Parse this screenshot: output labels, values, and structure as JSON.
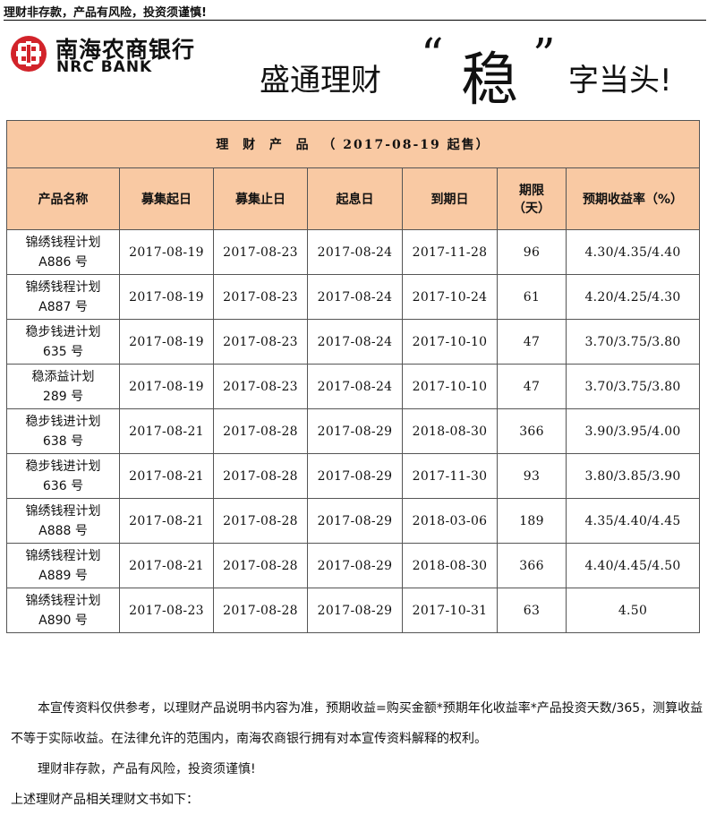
{
  "header": {
    "warning": "理财非存款，产品有风险，投资须谨慎!"
  },
  "logo": {
    "cn": "南海农商银行",
    "en": "NRC BANK"
  },
  "slogan": {
    "part1": "盛通理财",
    "open_quote": "“",
    "emphasis": "稳",
    "close_quote": "”",
    "part2": "字当头!"
  },
  "table": {
    "title": "理  财  产  品  （ 2017-08-19 起售）",
    "columns": [
      "产品名称",
      "募集起日",
      "募集止日",
      "起息日",
      "到期日",
      "期限（天）",
      "预期收益率（%）"
    ],
    "rows": [
      {
        "name_1": "锦绣钱程计划",
        "name_2": "A886 号",
        "start": "2017-08-19",
        "end": "2017-08-23",
        "value_date": "2017-08-24",
        "maturity": "2017-11-28",
        "days": "96",
        "yield": "4.30/4.35/4.40"
      },
      {
        "name_1": "锦绣钱程计划",
        "name_2": "A887 号",
        "start": "2017-08-19",
        "end": "2017-08-23",
        "value_date": "2017-08-24",
        "maturity": "2017-10-24",
        "days": "61",
        "yield": "4.20/4.25/4.30"
      },
      {
        "name_1": "稳步钱进计划",
        "name_2": "635 号",
        "start": "2017-08-19",
        "end": "2017-08-23",
        "value_date": "2017-08-24",
        "maturity": "2017-10-10",
        "days": "47",
        "yield": "3.70/3.75/3.80"
      },
      {
        "name_1": "稳添益计划",
        "name_2": "289 号",
        "start": "2017-08-19",
        "end": "2017-08-23",
        "value_date": "2017-08-24",
        "maturity": "2017-10-10",
        "days": "47",
        "yield": "3.70/3.75/3.80"
      },
      {
        "name_1": "稳步钱进计划",
        "name_2": "638 号",
        "start": "2017-08-21",
        "end": "2017-08-28",
        "value_date": "2017-08-29",
        "maturity": "2018-08-30",
        "days": "366",
        "yield": "3.90/3.95/4.00"
      },
      {
        "name_1": "稳步钱进计划",
        "name_2": "636 号",
        "start": "2017-08-21",
        "end": "2017-08-28",
        "value_date": "2017-08-29",
        "maturity": "2017-11-30",
        "days": "93",
        "yield": "3.80/3.85/3.90"
      },
      {
        "name_1": "锦绣钱程计划",
        "name_2": "A888 号",
        "start": "2017-08-21",
        "end": "2017-08-28",
        "value_date": "2017-08-29",
        "maturity": "2018-03-06",
        "days": "189",
        "yield": "4.35/4.40/4.45"
      },
      {
        "name_1": "锦绣钱程计划",
        "name_2": "A889 号",
        "start": "2017-08-21",
        "end": "2017-08-28",
        "value_date": "2017-08-29",
        "maturity": "2018-08-30",
        "days": "366",
        "yield": "4.40/4.45/4.50"
      },
      {
        "name_1": "锦绣钱程计划",
        "name_2": "A890 号",
        "start": "2017-08-23",
        "end": "2017-08-28",
        "value_date": "2017-08-29",
        "maturity": "2017-10-31",
        "days": "63",
        "yield": "4.50"
      }
    ]
  },
  "footer": {
    "disclaimer": "本宣传资料仅供参考，以理财产品说明书内容为准，预期收益=购买金额*预期年化收益率*产品投资天数/365，测算收益不等于实际收益。在法律允许的范围内，南海农商银行拥有对本宣传资料解释的权利。",
    "warning": "理财非存款，产品有风险，投资须谨慎!",
    "docs_line": "上述理财产品相关理财文书如下："
  },
  "colors": {
    "table_header_bg": "#f9c9a3",
    "logo_red": "#d2232a"
  }
}
